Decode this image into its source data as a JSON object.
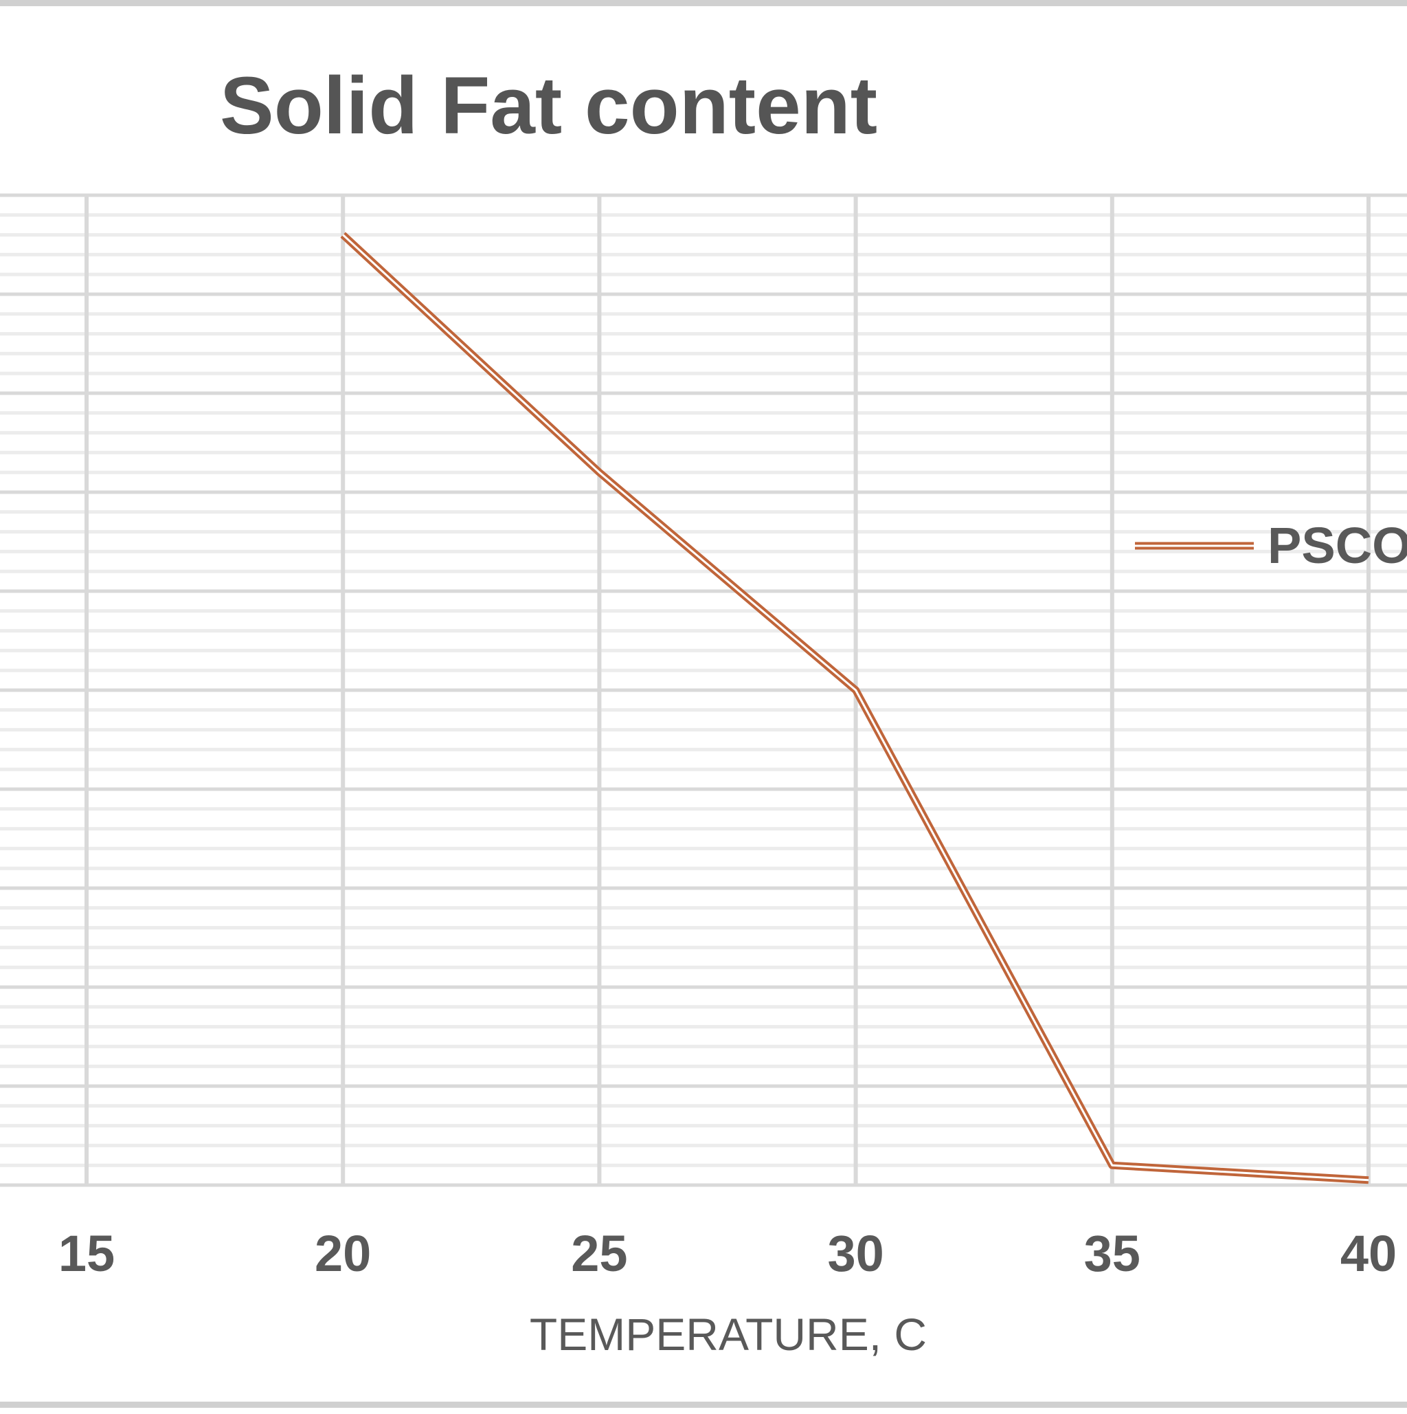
{
  "chart_data": {
    "type": "line",
    "title": "Solid Fat content",
    "xlabel": "TEMPERATURE, C",
    "ylabel": "",
    "x": [
      20,
      25,
      30,
      35,
      40
    ],
    "x_ticks": [
      "15",
      "20",
      "25",
      "30",
      "35",
      "40"
    ],
    "xlim": [
      15,
      40
    ],
    "ylim": [
      0,
      100
    ],
    "grid": true,
    "legend_position": "right",
    "series": [
      {
        "name": "PSCO",
        "values": [
          96,
          72,
          50,
          2,
          0.5
        ],
        "color": "#c0653a"
      }
    ]
  }
}
